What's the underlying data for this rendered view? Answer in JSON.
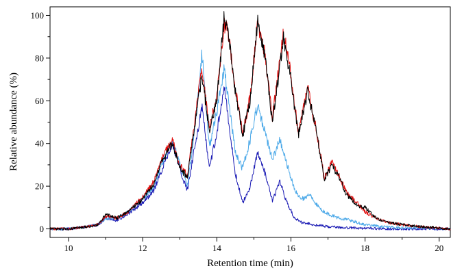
{
  "chart_data": {
    "type": "line",
    "title": "",
    "xlabel": "Retention time (min)",
    "ylabel": "Relative abundance (%)",
    "xlim": [
      9.5,
      20.3
    ],
    "ylim": [
      -4,
      104
    ],
    "xticks": [
      10,
      12,
      14,
      16,
      18,
      20
    ],
    "xtick_labels": [
      "10",
      "12",
      "14",
      "16",
      "18",
      "20"
    ],
    "yticks": [
      0,
      20,
      40,
      60,
      80,
      100
    ],
    "ytick_labels": [
      "0",
      "20",
      "40",
      "60",
      "80",
      "100"
    ],
    "grid": false,
    "legend": "none",
    "series": [
      {
        "color": "#1a1ab4",
        "x": [
          9.5,
          10.0,
          10.5,
          10.8,
          11.0,
          11.3,
          11.6,
          12.0,
          12.3,
          12.5,
          12.8,
          13.0,
          13.2,
          13.4,
          13.6,
          13.8,
          14.0,
          14.2,
          14.3,
          14.5,
          14.7,
          14.9,
          15.1,
          15.3,
          15.5,
          15.7,
          15.9,
          16.1,
          16.3,
          16.6,
          17.0,
          17.5,
          18.0,
          18.5,
          19.0,
          20.3
        ],
        "y": [
          0,
          0,
          1,
          2,
          5,
          4,
          7,
          12,
          18,
          27,
          40,
          28,
          18,
          38,
          57,
          28,
          45,
          68,
          52,
          26,
          12,
          20,
          36,
          26,
          13,
          22,
          12,
          5,
          3,
          2,
          1,
          0.5,
          0.3,
          0,
          0,
          0
        ]
      },
      {
        "color": "#4aa8e8",
        "x": [
          9.5,
          10.0,
          10.5,
          10.8,
          11.0,
          11.3,
          11.6,
          12.0,
          12.3,
          12.5,
          12.8,
          13.0,
          13.2,
          13.4,
          13.6,
          13.8,
          14.0,
          14.2,
          14.3,
          14.5,
          14.7,
          14.9,
          15.1,
          15.3,
          15.5,
          15.7,
          15.9,
          16.1,
          16.3,
          16.5,
          16.8,
          17.0,
          17.3,
          17.6,
          18.0,
          18.5,
          19.0,
          20.3
        ],
        "y": [
          0,
          0,
          1,
          2,
          5,
          5,
          8,
          14,
          20,
          30,
          42,
          30,
          20,
          45,
          82,
          38,
          55,
          75,
          62,
          36,
          28,
          42,
          58,
          45,
          32,
          42,
          30,
          18,
          14,
          16,
          9,
          7,
          5,
          4,
          2,
          1,
          0.5,
          0
        ]
      },
      {
        "color": "#e01010",
        "x": [
          9.5,
          10.0,
          10.5,
          10.8,
          11.0,
          11.3,
          11.6,
          12.0,
          12.3,
          12.5,
          12.8,
          13.0,
          13.2,
          13.4,
          13.6,
          13.8,
          14.0,
          14.2,
          14.3,
          14.5,
          14.7,
          14.9,
          15.1,
          15.3,
          15.5,
          15.8,
          16.0,
          16.2,
          16.45,
          16.7,
          16.9,
          17.1,
          17.3,
          17.5,
          17.8,
          18.0,
          18.3,
          18.6,
          19.0,
          19.5,
          20.3
        ],
        "y": [
          0,
          0,
          1,
          2,
          6,
          5,
          8,
          15,
          22,
          32,
          42,
          30,
          25,
          50,
          75,
          48,
          62,
          96,
          92,
          65,
          45,
          62,
          97,
          82,
          52,
          92,
          72,
          45,
          66,
          45,
          24,
          31,
          25,
          17,
          12,
          8,
          5,
          3,
          2,
          1,
          0
        ]
      },
      {
        "color": "#000000",
        "x": [
          9.5,
          10.0,
          10.5,
          10.8,
          11.0,
          11.3,
          11.6,
          12.0,
          12.3,
          12.5,
          12.8,
          13.0,
          13.2,
          13.4,
          13.6,
          13.8,
          14.0,
          14.2,
          14.3,
          14.5,
          14.7,
          14.9,
          15.1,
          15.3,
          15.5,
          15.8,
          16.0,
          16.2,
          16.45,
          16.7,
          16.9,
          17.1,
          17.3,
          17.5,
          17.8,
          18.0,
          18.3,
          18.6,
          19.0,
          19.5,
          20.3
        ],
        "y": [
          0,
          0,
          1,
          2,
          7,
          5,
          8,
          14,
          21,
          31,
          40,
          29,
          24,
          48,
          72,
          46,
          60,
          100,
          93,
          64,
          44,
          60,
          98,
          80,
          50,
          90,
          70,
          44,
          65,
          44,
          23,
          30,
          24,
          16,
          11,
          10,
          5,
          3,
          2,
          1,
          0
        ]
      }
    ]
  }
}
